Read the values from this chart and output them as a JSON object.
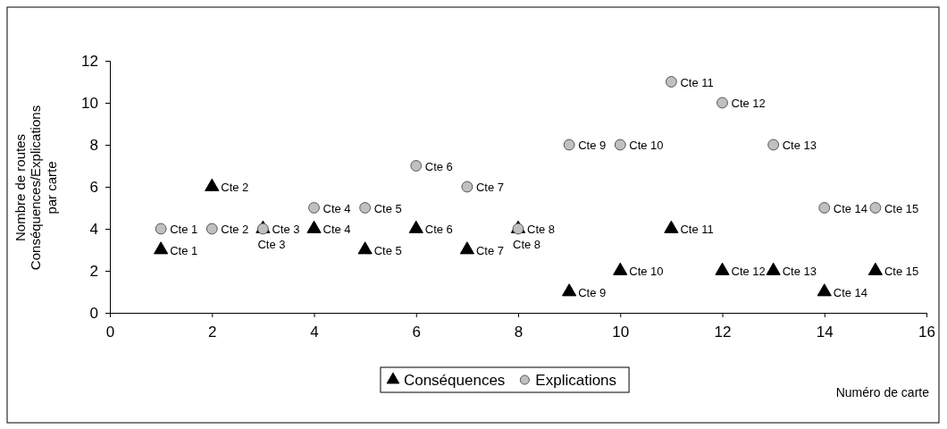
{
  "chart_data": {
    "type": "scatter",
    "xlabel": "Numéro de carte",
    "ylabel": "Nombre de routes\nConséquences/Explications\npar carte",
    "xlim": [
      0,
      16
    ],
    "xticks": [
      0,
      2,
      4,
      6,
      8,
      10,
      12,
      14,
      16
    ],
    "ylim": [
      0,
      12
    ],
    "yticks": [
      0,
      2,
      4,
      6,
      8,
      10,
      12
    ],
    "grid": false,
    "legend": "bottom",
    "series": [
      {
        "name": "Conséquences",
        "color": "#000000",
        "marker": "triangle",
        "x": [
          1,
          2,
          3,
          4,
          5,
          6,
          7,
          8,
          9,
          10,
          11,
          12,
          13,
          14,
          15
        ],
        "values": [
          3,
          6,
          4,
          4,
          3,
          4,
          3,
          4,
          1,
          2,
          4,
          2,
          2,
          1,
          2
        ],
        "value_labels": [
          "Cte 1",
          "Cte 2",
          "Cte 3",
          "Cte 4",
          "Cte 5",
          "Cte 6",
          "Cte 7",
          "Cte 8",
          "Cte 9",
          "Cte 10",
          "Cte 11",
          "Cte 12",
          "Cte 13",
          "Cte 14",
          "Cte 15"
        ]
      },
      {
        "name": "Explications",
        "color": "#c0c0c0",
        "marker": "circle",
        "x": [
          1,
          2,
          3,
          4,
          5,
          6,
          7,
          8,
          9,
          10,
          11,
          12,
          13,
          14,
          15
        ],
        "values": [
          4,
          4,
          4,
          5,
          5,
          7,
          6,
          4,
          8,
          8,
          11,
          10,
          8,
          5,
          5
        ],
        "value_labels": [
          "Cte 1",
          "Cte 2",
          "Cte 3",
          "Cte 4",
          "Cte 5",
          "Cte 6",
          "Cte 7",
          "Cte 8",
          "Cte 9",
          "Cte 10",
          "Cte 11",
          "Cte 12",
          "Cte 13",
          "Cte 14",
          "Cte 15"
        ]
      }
    ]
  }
}
